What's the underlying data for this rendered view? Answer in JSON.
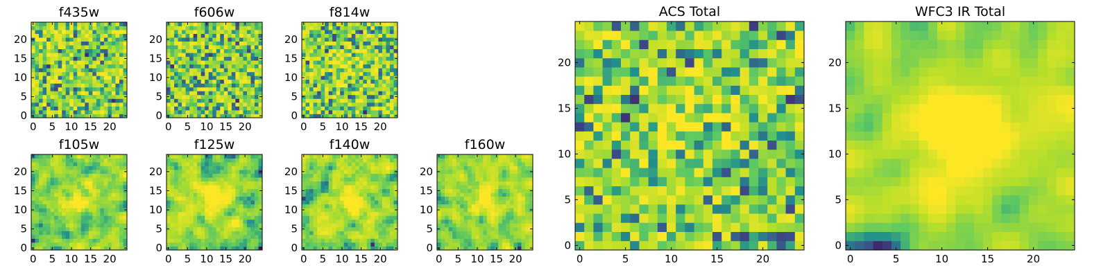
{
  "figure": {
    "panels": [
      {
        "title": "f435w",
        "seed": 11,
        "smooth": 0,
        "yellow_blob": 0
      },
      {
        "title": "f606w",
        "seed": 23,
        "smooth": 0,
        "yellow_blob": 0
      },
      {
        "title": "f814w",
        "seed": 37,
        "smooth": 0,
        "yellow_blob": 0.15
      },
      {
        "title": "f105w",
        "seed": 41,
        "smooth": 1,
        "yellow_blob": 0.35
      },
      {
        "title": "f125w",
        "seed": 53,
        "smooth": 1,
        "yellow_blob": 0.35
      },
      {
        "title": "f140w",
        "seed": 67,
        "smooth": 1,
        "yellow_blob": 0.3
      },
      {
        "title": "f160w",
        "seed": 79,
        "smooth": 1,
        "yellow_blob": 0.3
      },
      {
        "title": "ACS Total",
        "seed": 83,
        "smooth": 0,
        "yellow_blob": 0.25
      },
      {
        "title": "WFC3 IR Total",
        "seed": 97,
        "smooth": 2,
        "yellow_blob": 0.5
      }
    ],
    "small_xticks": [
      "0",
      "5",
      "10",
      "15",
      "20"
    ],
    "small_yticks": [
      "0",
      "5",
      "10",
      "15",
      "20"
    ],
    "large_xticks": [
      "0",
      "5",
      "10",
      "15",
      "20"
    ],
    "large_yticks": [
      "0",
      "5",
      "10",
      "15",
      "20"
    ],
    "colormap": [
      "#440154",
      "#3b528b",
      "#21918c",
      "#5ec962",
      "#b5de2b",
      "#fde725"
    ]
  },
  "chart_data": {
    "type": "heatmap",
    "grid_size": [
      25,
      25
    ],
    "xlim": [
      0,
      24
    ],
    "ylim": [
      0,
      24
    ],
    "colormap": "viridis",
    "grid": false,
    "panels": [
      "f435w",
      "f606w",
      "f814w",
      "f105w",
      "f125w",
      "f140w",
      "f160w",
      "ACS Total",
      "WFC3 IR Total"
    ]
  }
}
